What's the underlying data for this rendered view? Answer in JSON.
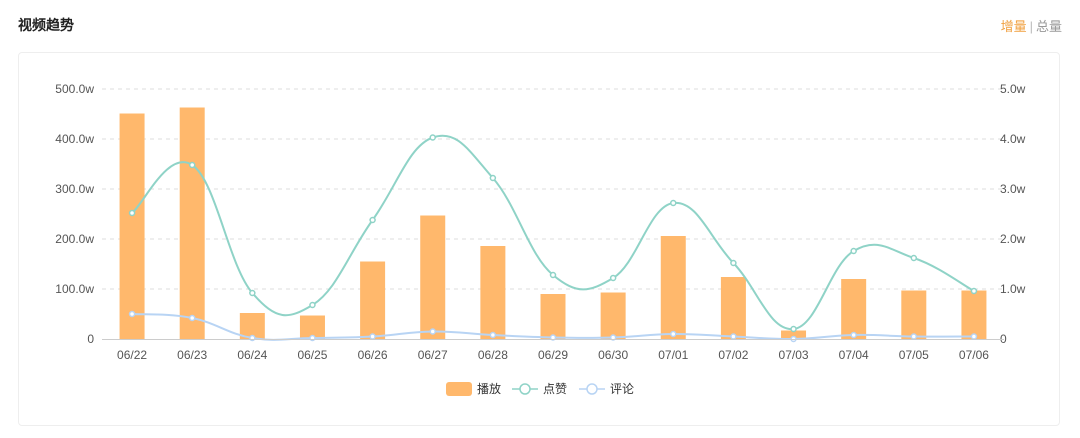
{
  "header": {
    "title": "视频趋势",
    "toggle_increment": "增量",
    "toggle_separator": "|",
    "toggle_total": "总量"
  },
  "colors": {
    "bar": "#ffb86c",
    "like_line": "#8fd3c7",
    "comment_line": "#b8d4f4",
    "active_toggle": "#f0a040",
    "grid": "#dddddd"
  },
  "chart_data": {
    "type": "bar",
    "categories": [
      "06/22",
      "06/23",
      "06/24",
      "06/25",
      "06/26",
      "06/27",
      "06/28",
      "06/29",
      "06/30",
      "07/01",
      "07/02",
      "07/03",
      "07/04",
      "07/05",
      "07/06"
    ],
    "y_left": {
      "ticks": [
        "0",
        "100.0w",
        "200.0w",
        "300.0w",
        "400.0w",
        "500.0w"
      ],
      "ylim": [
        0,
        500
      ]
    },
    "y_right": {
      "ticks": [
        "0",
        "1.0w",
        "2.0w",
        "3.0w",
        "4.0w",
        "5.0w"
      ],
      "ylim": [
        0,
        5
      ]
    },
    "grid": true,
    "legend_position": "bottom-center",
    "series": [
      {
        "name": "播放",
        "type": "bar",
        "axis": "left",
        "values": [
          451,
          463,
          52,
          47,
          155,
          247,
          186,
          90,
          93,
          206,
          124,
          17,
          120,
          97,
          97
        ]
      },
      {
        "name": "点赞",
        "type": "line",
        "axis": "right",
        "values": [
          2.52,
          3.48,
          0.92,
          0.68,
          2.38,
          4.03,
          3.22,
          1.28,
          1.22,
          2.72,
          1.52,
          0.2,
          1.76,
          1.62,
          0.96
        ]
      },
      {
        "name": "评论",
        "type": "line",
        "axis": "right",
        "values": [
          0.5,
          0.42,
          0.02,
          0.02,
          0.05,
          0.15,
          0.08,
          0.03,
          0.03,
          0.1,
          0.05,
          0.0,
          0.08,
          0.05,
          0.05
        ]
      }
    ]
  }
}
